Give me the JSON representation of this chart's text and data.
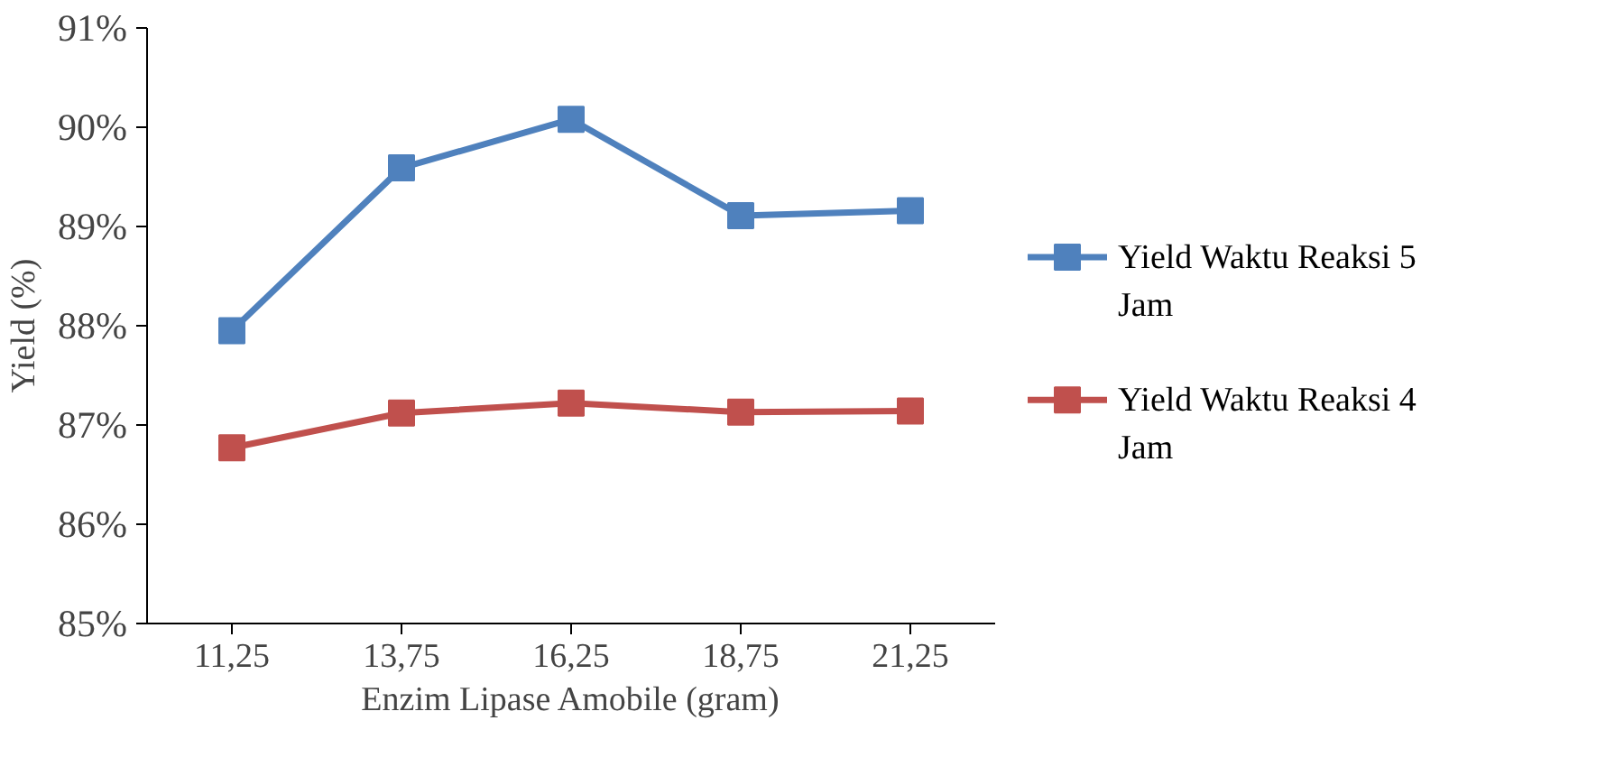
{
  "chart_data": {
    "type": "line",
    "xlabel": "Enzim Lipase Amobile (gram)",
    "ylabel": "Yield (%)",
    "categories": [
      "11,25",
      "13,75",
      "16,25",
      "18,75",
      "21,25"
    ],
    "series": [
      {
        "name": "Yield Waktu Reaksi 5 Jam",
        "color": "#4f81bd",
        "values": [
          87.95,
          89.59,
          90.08,
          89.11,
          89.16
        ]
      },
      {
        "name": " Yield Waktu Reaksi 4 Jam",
        "color": "#c0504d",
        "values": [
          86.77,
          87.12,
          87.22,
          87.13,
          87.14
        ]
      }
    ],
    "ylim": [
      85,
      91
    ],
    "yticks": [
      {
        "value": 85,
        "label": "85%"
      },
      {
        "value": 86,
        "label": "86%"
      },
      {
        "value": 87,
        "label": "87%"
      },
      {
        "value": 88,
        "label": "88%"
      },
      {
        "value": 89,
        "label": "89%"
      },
      {
        "value": 90,
        "label": "90%"
      },
      {
        "value": 91,
        "label": "91%"
      }
    ],
    "grid": false,
    "legend": "right",
    "marker": "square",
    "line_style": "solid"
  }
}
